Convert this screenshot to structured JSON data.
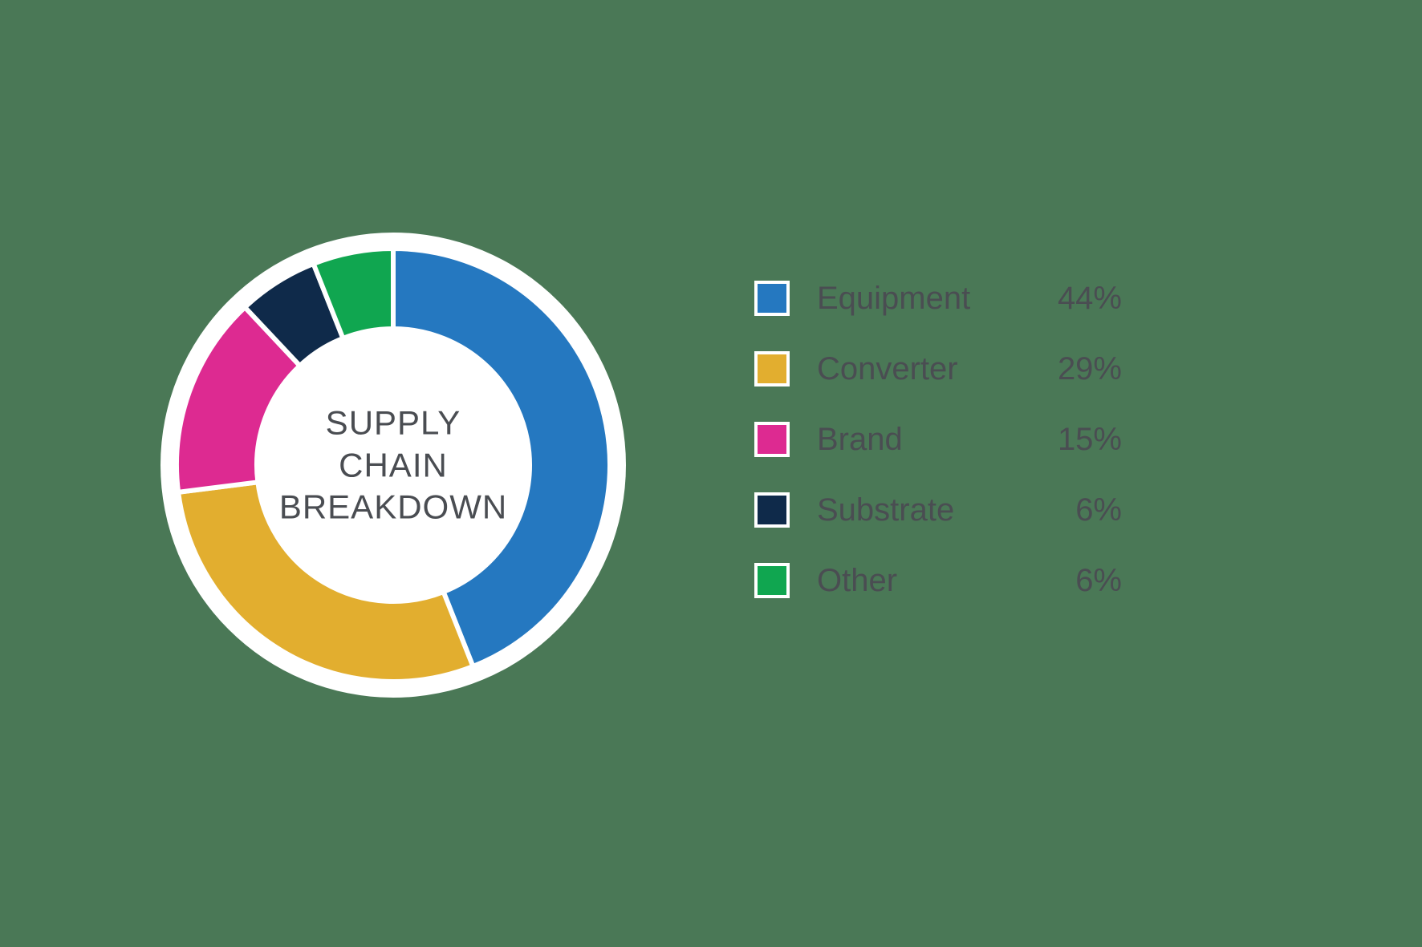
{
  "chart": {
    "type": "donut",
    "center_title_line1": "SUPPLY",
    "center_title_line2": "CHAIN",
    "center_title_line3": "BREAKDOWN",
    "center_title_color": "#4a4d52",
    "center_title_fontsize": 42,
    "background_color": "#4a7856",
    "ring_background_color": "#ffffff",
    "outer_white_diameter": 580,
    "donut_outer_diameter": 540,
    "donut_inner_diameter": 340,
    "slice_gap_stroke": "#ffffff",
    "slice_gap_width": 6,
    "slices": [
      {
        "label": "Equipment",
        "value": 44,
        "value_display": "44%",
        "color": "#2578c0"
      },
      {
        "label": "Converter",
        "value": 29,
        "value_display": "29%",
        "color": "#e2ae2f"
      },
      {
        "label": "Brand",
        "value": 15,
        "value_display": "15%",
        "color": "#dd2a91"
      },
      {
        "label": "Substrate",
        "value": 6,
        "value_display": "6%",
        "color": "#0f2a4a"
      },
      {
        "label": "Other",
        "value": 6,
        "value_display": "6%",
        "color": "#10a650"
      }
    ],
    "legend": {
      "label_color": "#4a4d52",
      "label_fontsize": 40,
      "swatch_size": 44,
      "swatch_border_color": "#ffffff",
      "swatch_border_width": 4,
      "row_gap": 44
    }
  }
}
